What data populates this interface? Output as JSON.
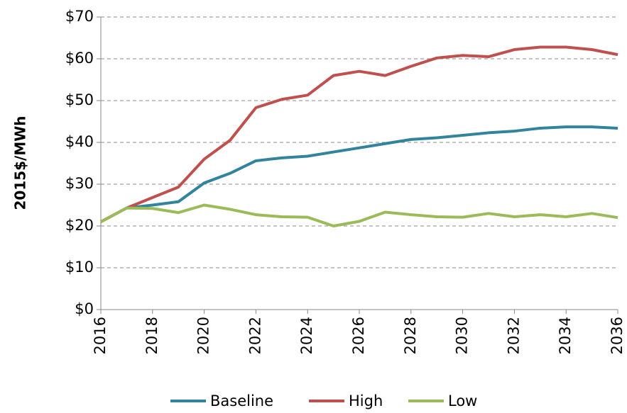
{
  "chart_data": {
    "type": "line",
    "y_label": "2015$/MWh",
    "x": [
      2016,
      2017,
      2018,
      2019,
      2020,
      2021,
      2022,
      2023,
      2024,
      2025,
      2026,
      2027,
      2028,
      2029,
      2030,
      2031,
      2032,
      2033,
      2034,
      2035,
      2036
    ],
    "series": [
      {
        "name": "Baseline",
        "color": "#31849b",
        "values": [
          21,
          24.3,
          25,
          25.8,
          30.3,
          32.6,
          35.6,
          36.3,
          36.7,
          37.7,
          38.7,
          39.7,
          40.7,
          41.1,
          41.7,
          42.3,
          42.7,
          43.4,
          43.7,
          43.7,
          43.4
        ]
      },
      {
        "name": "High",
        "color": "#c0504d",
        "values": [
          21,
          24.3,
          26.8,
          29.3,
          36,
          40.5,
          48.3,
          50.3,
          51.3,
          56,
          57,
          56,
          58.2,
          60.2,
          60.8,
          60.5,
          62.2,
          62.8,
          62.8,
          62.2,
          61
        ]
      },
      {
        "name": "Low",
        "color": "#9bbb59",
        "values": [
          21,
          24.3,
          24.2,
          23.2,
          25,
          24,
          22.7,
          22.2,
          22.1,
          20,
          21.1,
          23.3,
          22.7,
          22.2,
          22.1,
          23,
          22.2,
          22.7,
          22.2,
          23,
          22
        ]
      }
    ],
    "xlim": [
      2016,
      2036
    ],
    "xticks": [
      2016,
      2018,
      2020,
      2022,
      2024,
      2026,
      2028,
      2030,
      2032,
      2034,
      2036
    ],
    "ylim": [
      0,
      70
    ],
    "yticks": [
      {
        "value": 0,
        "label": "$0"
      },
      {
        "value": 10,
        "label": "$10"
      },
      {
        "value": 20,
        "label": "$20"
      },
      {
        "value": 30,
        "label": "$30"
      },
      {
        "value": 40,
        "label": "$40"
      },
      {
        "value": 50,
        "label": "$50"
      },
      {
        "value": 60,
        "label": "$60"
      },
      {
        "value": 70,
        "label": "$70"
      }
    ],
    "grid": true,
    "legend": "bottom"
  }
}
